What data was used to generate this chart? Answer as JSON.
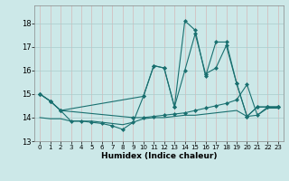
{
  "xlabel": "Humidex (Indice chaleur)",
  "background_color": "#cce8e8",
  "grid_color": "#aacccc",
  "line_color": "#1a7070",
  "xlim": [
    -0.5,
    23.5
  ],
  "ylim": [
    13.0,
    18.75
  ],
  "yticks": [
    13,
    14,
    15,
    16,
    17,
    18
  ],
  "xticks": [
    0,
    1,
    2,
    3,
    4,
    5,
    6,
    7,
    8,
    9,
    10,
    11,
    12,
    13,
    14,
    15,
    16,
    17,
    18,
    19,
    20,
    21,
    22,
    23
  ],
  "series": [
    {
      "x": [
        0,
        1,
        2,
        3,
        4,
        5,
        6,
        7,
        8,
        9,
        10,
        11,
        12,
        13,
        14,
        15,
        16,
        17,
        18,
        19,
        20,
        21,
        22,
        23
      ],
      "y": [
        15.0,
        14.7,
        14.3,
        13.85,
        13.85,
        13.8,
        13.75,
        13.65,
        13.5,
        13.8,
        14.9,
        16.2,
        16.1,
        14.45,
        16.0,
        17.55,
        15.85,
        16.1,
        17.05,
        15.45,
        14.05,
        14.45,
        14.45,
        14.45
      ],
      "marker": "D",
      "markersize": 2.0,
      "linewidth": 0.8
    },
    {
      "x": [
        0,
        1,
        2,
        10,
        11,
        12,
        13,
        14,
        15,
        16,
        17,
        18,
        19,
        20,
        21,
        22,
        23
      ],
      "y": [
        15.0,
        14.7,
        14.3,
        14.9,
        16.2,
        16.1,
        14.45,
        18.1,
        17.7,
        15.75,
        17.2,
        17.2,
        15.45,
        14.05,
        14.45,
        14.45,
        14.45
      ],
      "marker": "D",
      "markersize": 2.0,
      "linewidth": 0.8
    },
    {
      "x": [
        0,
        1,
        2,
        9,
        10,
        11,
        12,
        13,
        14,
        15,
        16,
        17,
        18,
        19,
        20,
        21,
        22,
        23
      ],
      "y": [
        15.0,
        14.7,
        14.3,
        14.0,
        14.0,
        14.05,
        14.1,
        14.15,
        14.2,
        14.3,
        14.4,
        14.5,
        14.6,
        14.75,
        15.4,
        14.1,
        14.45,
        14.45
      ],
      "marker": "D",
      "markersize": 2.0,
      "linewidth": 0.8
    },
    {
      "x": [
        0,
        1,
        2,
        3,
        4,
        5,
        6,
        7,
        8,
        9,
        10,
        11,
        12,
        13,
        14,
        15,
        16,
        17,
        18,
        19,
        20,
        21,
        22,
        23
      ],
      "y": [
        14.0,
        13.95,
        13.95,
        13.85,
        13.85,
        13.85,
        13.8,
        13.75,
        13.7,
        13.8,
        13.95,
        14.0,
        14.0,
        14.05,
        14.1,
        14.1,
        14.15,
        14.2,
        14.25,
        14.3,
        14.05,
        14.1,
        14.4,
        14.4
      ],
      "marker": null,
      "markersize": 0,
      "linewidth": 0.8,
      "linestyle": "-"
    }
  ]
}
